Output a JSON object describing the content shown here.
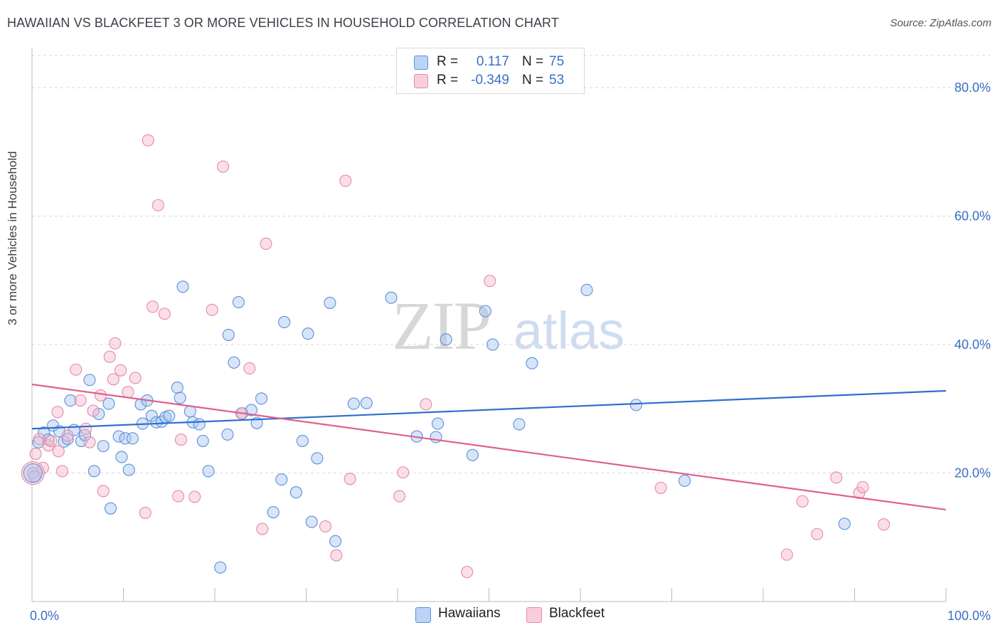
{
  "title": "HAWAIIAN VS BLACKFEET 3 OR MORE VEHICLES IN HOUSEHOLD CORRELATION CHART",
  "source": "Source: ZipAtlas.com",
  "watermark": {
    "zip": "ZIP",
    "atlas": "atlas"
  },
  "colors": {
    "blue_fill": "#a9c6f0",
    "blue_stroke": "#5b8fd9",
    "blue_line": "#2e6fcc",
    "pink_fill": "#f5b9cb",
    "pink_stroke": "#e58aa8",
    "pink_line": "#e0608f",
    "tick_text": "#3a6fc6",
    "grid": "#d8d8d8"
  },
  "legend": {
    "rows": [
      {
        "r_label": "R =",
        "r_value": "0.117",
        "n_label": "N =",
        "n_value": "75"
      },
      {
        "r_label": "R =",
        "r_value": "-0.349",
        "n_label": "N =",
        "n_value": "53"
      }
    ],
    "bottom": [
      "Hawaiians",
      "Blackfeet"
    ]
  },
  "chart_data": {
    "type": "scatter",
    "title": "HAWAIIAN VS BLACKFEET 3 OR MORE VEHICLES IN HOUSEHOLD CORRELATION CHART",
    "xlabel": "",
    "ylabel": "3 or more Vehicles in Household",
    "xlim": [
      0,
      100
    ],
    "ylim": [
      0,
      85
    ],
    "x_tick_labels": [
      "0.0%",
      "100.0%"
    ],
    "y_ticks": [
      20,
      40,
      60,
      80
    ],
    "y_tick_labels": [
      "20.0%",
      "40.0%",
      "60.0%",
      "80.0%"
    ],
    "grid": true,
    "legend_position": "top-center",
    "series": [
      {
        "name": "Hawaiians",
        "r": 0.117,
        "n": 75,
        "trend": {
          "x": [
            0,
            100
          ],
          "y": [
            26.9,
            32.8
          ]
        },
        "points": [
          [
            0.7,
            24.8
          ],
          [
            1.3,
            26.3
          ],
          [
            1.8,
            25.2
          ],
          [
            2.3,
            27.4
          ],
          [
            3.0,
            26.5
          ],
          [
            3.5,
            24.9
          ],
          [
            3.9,
            25.3
          ],
          [
            4.2,
            31.3
          ],
          [
            4.6,
            26.7
          ],
          [
            5.4,
            25.0
          ],
          [
            5.8,
            25.9
          ],
          [
            6.3,
            34.5
          ],
          [
            6.8,
            20.3
          ],
          [
            7.3,
            29.2
          ],
          [
            7.8,
            24.2
          ],
          [
            8.4,
            30.8
          ],
          [
            8.6,
            14.5
          ],
          [
            9.5,
            25.7
          ],
          [
            9.8,
            22.5
          ],
          [
            10.2,
            25.4
          ],
          [
            10.6,
            20.5
          ],
          [
            11.0,
            25.4
          ],
          [
            11.9,
            30.7
          ],
          [
            12.1,
            27.7
          ],
          [
            12.6,
            31.3
          ],
          [
            13.1,
            28.9
          ],
          [
            13.6,
            27.9
          ],
          [
            14.2,
            28.0
          ],
          [
            14.6,
            28.7
          ],
          [
            15.0,
            28.9
          ],
          [
            15.9,
            33.3
          ],
          [
            16.2,
            31.7
          ],
          [
            16.5,
            49.0
          ],
          [
            17.3,
            29.6
          ],
          [
            17.6,
            27.9
          ],
          [
            18.3,
            27.6
          ],
          [
            18.7,
            25.0
          ],
          [
            19.3,
            20.3
          ],
          [
            20.6,
            5.3
          ],
          [
            21.4,
            26.0
          ],
          [
            21.5,
            41.5
          ],
          [
            22.1,
            37.2
          ],
          [
            22.6,
            46.6
          ],
          [
            23.0,
            29.3
          ],
          [
            24.0,
            29.8
          ],
          [
            24.6,
            27.8
          ],
          [
            25.1,
            31.6
          ],
          [
            27.3,
            19.0
          ],
          [
            27.6,
            43.5
          ],
          [
            28.9,
            17.0
          ],
          [
            29.6,
            25.0
          ],
          [
            30.2,
            41.7
          ],
          [
            30.6,
            12.4
          ],
          [
            31.2,
            22.3
          ],
          [
            32.6,
            46.5
          ],
          [
            33.2,
            9.4
          ],
          [
            35.2,
            30.8
          ],
          [
            36.6,
            30.9
          ],
          [
            39.3,
            47.3
          ],
          [
            42.1,
            25.7
          ],
          [
            44.2,
            25.6
          ],
          [
            44.4,
            27.7
          ],
          [
            45.3,
            40.8
          ],
          [
            48.2,
            22.8
          ],
          [
            49.6,
            45.2
          ],
          [
            50.4,
            40.0
          ],
          [
            53.3,
            27.6
          ],
          [
            54.7,
            37.1
          ],
          [
            60.7,
            48.5
          ],
          [
            66.1,
            30.6
          ],
          [
            71.4,
            18.8
          ],
          [
            88.9,
            12.1
          ],
          [
            26.4,
            13.9
          ],
          [
            0.1,
            20.0
          ],
          [
            0.3,
            19.5
          ]
        ]
      },
      {
        "name": "Blackfeet",
        "r": -0.349,
        "n": 53,
        "trend": {
          "x": [
            0,
            100
          ],
          "y": [
            33.8,
            14.3
          ]
        },
        "points": [
          [
            0.4,
            23.0
          ],
          [
            0.8,
            25.3
          ],
          [
            1.2,
            20.8
          ],
          [
            1.8,
            24.3
          ],
          [
            2.1,
            25.0
          ],
          [
            2.8,
            29.5
          ],
          [
            2.9,
            23.4
          ],
          [
            3.3,
            20.3
          ],
          [
            3.9,
            25.8
          ],
          [
            4.8,
            36.1
          ],
          [
            5.3,
            31.3
          ],
          [
            5.9,
            26.9
          ],
          [
            6.3,
            24.8
          ],
          [
            6.7,
            29.7
          ],
          [
            7.5,
            32.1
          ],
          [
            7.8,
            17.2
          ],
          [
            8.5,
            38.1
          ],
          [
            8.9,
            34.6
          ],
          [
            9.1,
            40.2
          ],
          [
            9.7,
            36.0
          ],
          [
            10.5,
            32.6
          ],
          [
            11.3,
            34.8
          ],
          [
            12.4,
            13.8
          ],
          [
            12.7,
            71.8
          ],
          [
            13.2,
            45.9
          ],
          [
            13.8,
            61.7
          ],
          [
            14.5,
            44.8
          ],
          [
            16.0,
            16.4
          ],
          [
            16.3,
            25.2
          ],
          [
            17.8,
            16.3
          ],
          [
            19.7,
            45.4
          ],
          [
            20.9,
            67.7
          ],
          [
            22.9,
            29.3
          ],
          [
            23.8,
            36.3
          ],
          [
            25.2,
            11.3
          ],
          [
            25.6,
            55.7
          ],
          [
            32.1,
            11.7
          ],
          [
            33.3,
            7.2
          ],
          [
            34.3,
            65.5
          ],
          [
            34.8,
            19.1
          ],
          [
            40.2,
            16.4
          ],
          [
            40.6,
            20.1
          ],
          [
            43.1,
            30.7
          ],
          [
            47.6,
            4.6
          ],
          [
            50.1,
            49.9
          ],
          [
            68.8,
            17.7
          ],
          [
            82.6,
            7.3
          ],
          [
            84.3,
            15.6
          ],
          [
            85.9,
            10.5
          ],
          [
            88.0,
            19.3
          ],
          [
            90.5,
            16.9
          ],
          [
            90.9,
            17.8
          ],
          [
            93.2,
            12.0
          ]
        ]
      }
    ]
  }
}
